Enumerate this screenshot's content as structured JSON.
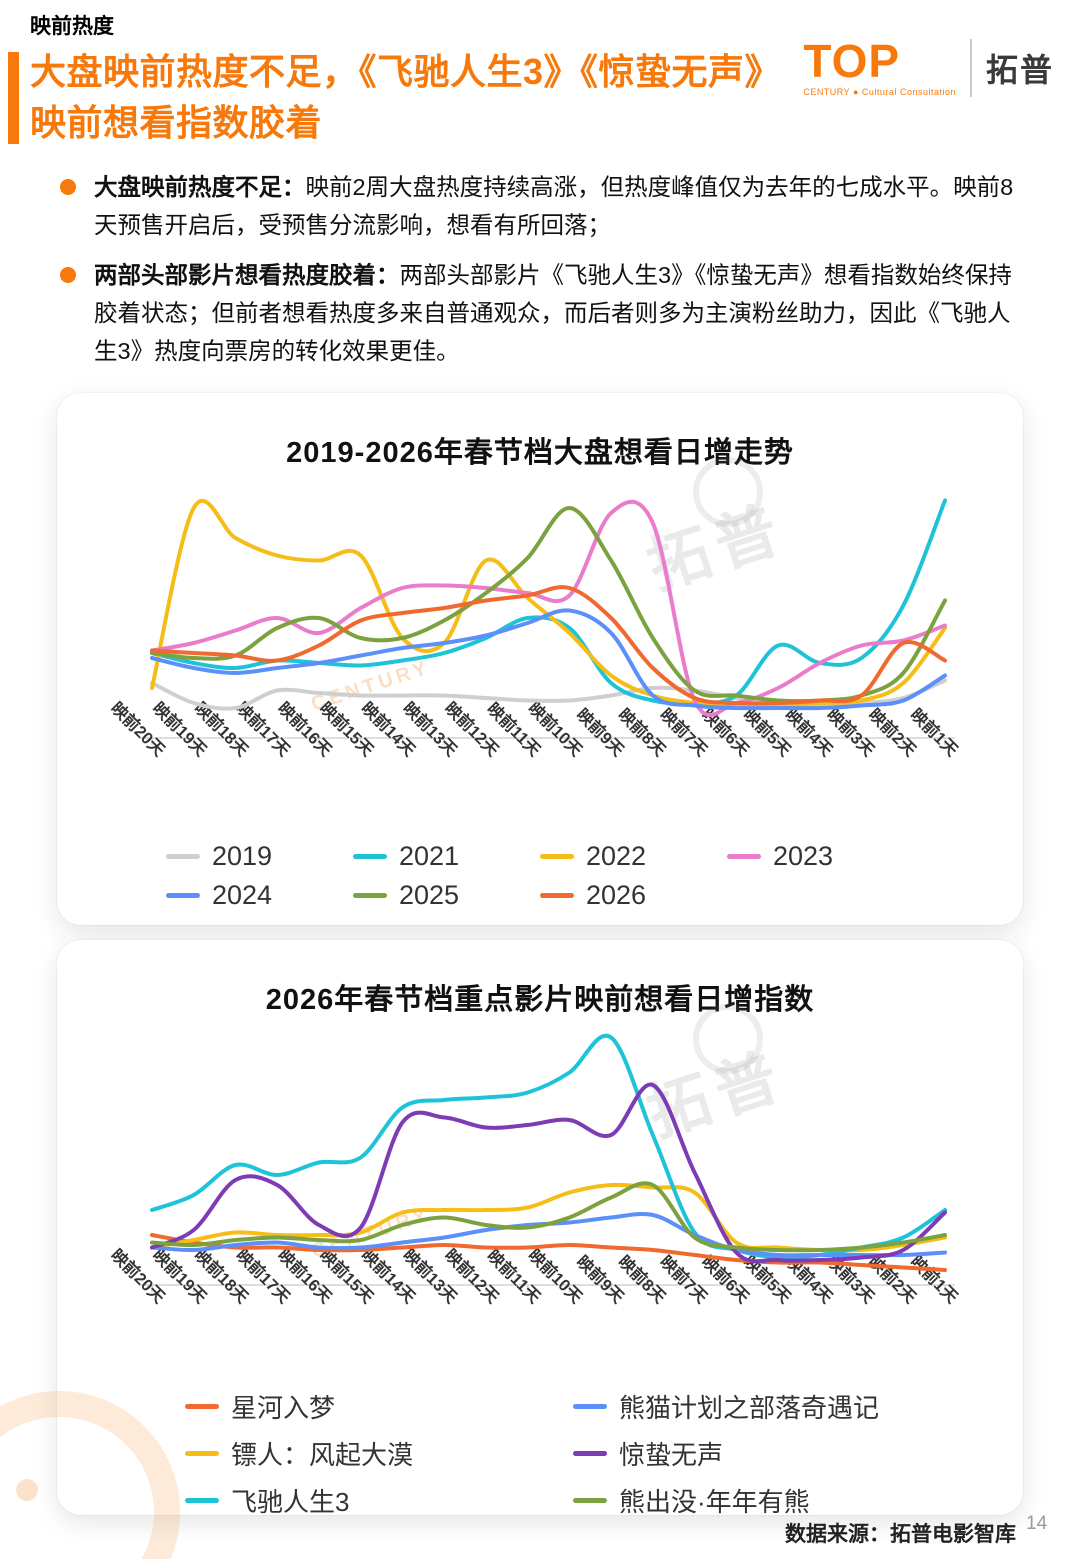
{
  "page": {
    "section_label": "映前热度",
    "title": "大盘映前热度不足，《飞驰人生3》《惊蛰无声》\n映前想看指数胶着",
    "footer_source": "数据来源：拓普电影智库",
    "page_number": "14"
  },
  "logo": {
    "word": "TOP",
    "caption": "CENTURY ● Cultural Consultation",
    "brand_cn": "拓普",
    "brand_color": "#F8790B"
  },
  "bullets": [
    {
      "lead": "大盘映前热度不足：",
      "text": "映前2周大盘热度持续高涨，但热度峰值仅为去年的七成水平。映前8天预售开启后，受预售分流影响，想看有所回落；"
    },
    {
      "lead": "两部头部影片想看热度胶着：",
      "text": "两部头部影片《飞驰人生3》《惊蛰无声》想看指数始终保持胶着状态；但前者想看热度多来自普通观众，而后者则多为主演粉丝助力，因此《飞驰人生3》热度向票房的转化效果更佳。"
    }
  ],
  "watermark": {
    "text": "拓普",
    "sub": "CENTURY"
  },
  "chart_data": [
    {
      "type": "line",
      "title": "2019-2026年春节档大盘想看日增走势",
      "xlabel": "",
      "ylabel": "",
      "ylim": [
        0,
        100
      ],
      "grid": false,
      "legend_position": "bottom",
      "categories": [
        "映前20天",
        "映前19天",
        "映前18天",
        "映前17天",
        "映前16天",
        "映前15天",
        "映前14天",
        "映前13天",
        "映前12天",
        "映前11天",
        "映前10天",
        "映前9天",
        "映前8天",
        "映前7天",
        "映前6天",
        "映前5天",
        "映前4天",
        "映前3天",
        "映前2天",
        "映前1天"
      ],
      "series": [
        {
          "name": "2019",
          "color": "#CFCFCF",
          "values": [
            22,
            14,
            12,
            19,
            18,
            17,
            17,
            17,
            16,
            15,
            15,
            17,
            20,
            19,
            16,
            14,
            13,
            14,
            16,
            23
          ]
        },
        {
          "name": "2021",
          "color": "#1FC3D8",
          "values": [
            34,
            30,
            28,
            31,
            30,
            29,
            31,
            34,
            40,
            48,
            44,
            22,
            15,
            14,
            17,
            37,
            30,
            32,
            53,
            95
          ]
        },
        {
          "name": "2022",
          "color": "#F6BD16",
          "values": [
            20,
            92,
            80,
            73,
            71,
            73,
            40,
            38,
            71,
            56,
            42,
            25,
            17,
            14,
            13,
            13,
            14,
            15,
            22,
            44
          ]
        },
        {
          "name": "2023",
          "color": "#EA7CCC",
          "values": [
            35,
            38,
            43,
            48,
            42,
            52,
            60,
            61,
            60,
            58,
            57,
            90,
            86,
            15,
            14,
            20,
            30,
            37,
            39,
            45
          ]
        },
        {
          "name": "2024",
          "color": "#5B8FF9",
          "values": [
            32,
            28,
            26,
            28,
            30,
            33,
            36,
            38,
            41,
            46,
            51,
            42,
            17,
            13,
            12,
            12,
            12,
            13,
            15,
            25
          ]
        },
        {
          "name": "2025",
          "color": "#7BA23F",
          "values": [
            34,
            32,
            33,
            44,
            48,
            40,
            40,
            47,
            58,
            72,
            92,
            71,
            40,
            19,
            17,
            15,
            15,
            17,
            26,
            55
          ]
        },
        {
          "name": "2026",
          "color": "#F0692E",
          "values": [
            35,
            34,
            33,
            31,
            37,
            47,
            50,
            52,
            55,
            57,
            60,
            48,
            28,
            16,
            14,
            14,
            15,
            17,
            38,
            31
          ]
        }
      ],
      "legend_rows": [
        [
          "2019",
          "2021",
          "2022",
          "2023"
        ],
        [
          "2024",
          "2025",
          "2026"
        ]
      ]
    },
    {
      "type": "line",
      "title": "2026年春节档重点影片映前想看日增指数",
      "xlabel": "",
      "ylabel": "",
      "ylim": [
        0,
        100
      ],
      "grid": false,
      "legend_position": "bottom",
      "categories": [
        "映前20天",
        "映前19天",
        "映前18天",
        "映前17天",
        "映前16天",
        "映前15天",
        "映前14天",
        "映前13天",
        "映前12天",
        "映前11天",
        "映前10天",
        "映前9天",
        "映前8天",
        "映前7天",
        "映前6天",
        "映前5天",
        "映前4天",
        "映前3天",
        "映前2天",
        "映前1天"
      ],
      "series": [
        {
          "name": "星河入梦",
          "color": "#F0692E",
          "values": [
            20,
            17,
            15,
            15,
            14,
            14,
            15,
            16,
            15,
            15,
            16,
            15,
            14,
            12,
            10,
            9,
            9,
            8,
            7,
            6
          ]
        },
        {
          "name": "镖人：风起大漠",
          "color": "#F6BD16",
          "values": [
            15,
            18,
            21,
            20,
            20,
            21,
            29,
            30,
            30,
            31,
            37,
            40,
            39,
            37,
            17,
            15,
            14,
            14,
            16,
            19
          ]
        },
        {
          "name": "飞驰人生3",
          "color": "#1FC3D8",
          "values": [
            30,
            36,
            48,
            44,
            49,
            51,
            71,
            74,
            75,
            77,
            85,
            99,
            60,
            21,
            14,
            11,
            12,
            15,
            19,
            30
          ]
        },
        {
          "name": "熊猫计划之部落奇遇记",
          "color": "#5B8FF9",
          "values": [
            15,
            14,
            16,
            17,
            15,
            15,
            17,
            19,
            22,
            24,
            25,
            27,
            28,
            20,
            14,
            12,
            12,
            12,
            12,
            13
          ]
        },
        {
          "name": "惊蛰无声",
          "color": "#7D3CB5",
          "values": [
            15,
            22,
            42,
            40,
            24,
            23,
            65,
            67,
            63,
            64,
            66,
            60,
            80,
            45,
            13,
            10,
            10,
            11,
            14,
            29
          ]
        },
        {
          "name": "熊出没·年年有熊",
          "color": "#7BA23F",
          "values": [
            17,
            16,
            18,
            19,
            18,
            18,
            24,
            27,
            24,
            23,
            27,
            35,
            40,
            19,
            15,
            14,
            14,
            15,
            17,
            20
          ]
        }
      ],
      "legend_rows": [
        [
          "星河入梦",
          "熊猫计划之部落奇遇记"
        ],
        [
          "镖人：风起大漠",
          "惊蛰无声"
        ],
        [
          "飞驰人生3",
          "熊出没·年年有熊"
        ]
      ]
    }
  ]
}
